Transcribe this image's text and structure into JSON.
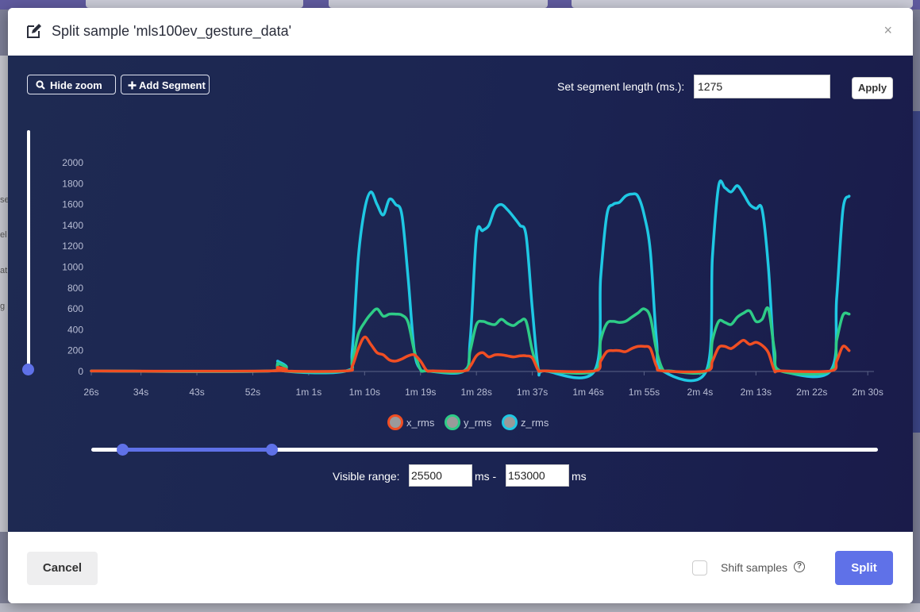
{
  "modal": {
    "title": "Split sample 'mls100ev_gesture_data'",
    "close_label": "×"
  },
  "toolbar": {
    "hide_zoom_label": "Hide zoom",
    "add_segment_label": "Add Segment",
    "segment_length_label": "Set segment length (ms.):",
    "segment_length_value": "1275",
    "apply_label": "Apply"
  },
  "visible_range": {
    "label": "Visible range:",
    "start_value": "25500",
    "separator": "ms -",
    "end_value": "153000",
    "unit": "ms",
    "slider_start_fraction": 0.04,
    "slider_end_fraction": 0.23
  },
  "footer": {
    "cancel_label": "Cancel",
    "shift_samples_label": "Shift samples",
    "split_label": "Split"
  },
  "background": {
    "side_fragments": [
      "se",
      "el",
      "at",
      "g"
    ]
  },
  "colors": {
    "accent": "#5f71e8",
    "x_rms": "#f04e23",
    "y_rms": "#2ecc87",
    "z_rms": "#1fc8e3"
  },
  "chart_data": {
    "type": "line",
    "title": "",
    "xlabel": "",
    "ylabel": "",
    "ylim": [
      0,
      2000
    ],
    "yticks": [
      0,
      200,
      400,
      600,
      800,
      1000,
      1200,
      1400,
      1600,
      1800,
      2000
    ],
    "xlim": [
      26,
      152
    ],
    "xticks": [
      {
        "t": 26,
        "label": "26s"
      },
      {
        "t": 34,
        "label": "34s"
      },
      {
        "t": 43,
        "label": "43s"
      },
      {
        "t": 52,
        "label": "52s"
      },
      {
        "t": 61,
        "label": "1m 1s"
      },
      {
        "t": 70,
        "label": "1m 10s"
      },
      {
        "t": 79,
        "label": "1m 19s"
      },
      {
        "t": 88,
        "label": "1m 28s"
      },
      {
        "t": 97,
        "label": "1m 37s"
      },
      {
        "t": 106,
        "label": "1m 46s"
      },
      {
        "t": 115,
        "label": "1m 55s"
      },
      {
        "t": 124,
        "label": "2m 4s"
      },
      {
        "t": 133,
        "label": "2m 13s"
      },
      {
        "t": 142,
        "label": "2m 22s"
      },
      {
        "t": 151,
        "label": "2m 30s"
      }
    ],
    "legend_position": "bottom-center",
    "series": [
      {
        "name": "x_rms",
        "points": [
          [
            26,
            5
          ],
          [
            55,
            5
          ],
          [
            56,
            40
          ],
          [
            57,
            5
          ],
          [
            67,
            5
          ],
          [
            68,
            50
          ],
          [
            69,
            220
          ],
          [
            70,
            330
          ],
          [
            71,
            260
          ],
          [
            72,
            180
          ],
          [
            73,
            160
          ],
          [
            74,
            110
          ],
          [
            75,
            100
          ],
          [
            76,
            120
          ],
          [
            77,
            150
          ],
          [
            78,
            160
          ],
          [
            79,
            100
          ],
          [
            80,
            10
          ],
          [
            81,
            5
          ],
          [
            86,
            5
          ],
          [
            87,
            50
          ],
          [
            88,
            150
          ],
          [
            89,
            180
          ],
          [
            90,
            140
          ],
          [
            91,
            160
          ],
          [
            92,
            160
          ],
          [
            93,
            150
          ],
          [
            94,
            140
          ],
          [
            95,
            150
          ],
          [
            96,
            150
          ],
          [
            97,
            130
          ],
          [
            98,
            10
          ],
          [
            99,
            5
          ],
          [
            107,
            5
          ],
          [
            108,
            100
          ],
          [
            109,
            190
          ],
          [
            110,
            200
          ],
          [
            111,
            200
          ],
          [
            112,
            190
          ],
          [
            113,
            220
          ],
          [
            114,
            240
          ],
          [
            115,
            240
          ],
          [
            116,
            220
          ],
          [
            117,
            50
          ],
          [
            118,
            5
          ],
          [
            125,
            5
          ],
          [
            126,
            100
          ],
          [
            127,
            230
          ],
          [
            128,
            240
          ],
          [
            129,
            220
          ],
          [
            130,
            260
          ],
          [
            131,
            300
          ],
          [
            132,
            260
          ],
          [
            133,
            280
          ],
          [
            134,
            250
          ],
          [
            135,
            180
          ],
          [
            136,
            10
          ],
          [
            137,
            5
          ],
          [
            145,
            5
          ],
          [
            146,
            100
          ],
          [
            147,
            240
          ],
          [
            148,
            200
          ]
        ]
      },
      {
        "name": "y_rms",
        "points": [
          [
            26,
            5
          ],
          [
            55,
            5
          ],
          [
            56,
            80
          ],
          [
            57,
            5
          ],
          [
            67,
            5
          ],
          [
            68,
            100
          ],
          [
            69,
            360
          ],
          [
            70,
            470
          ],
          [
            71,
            550
          ],
          [
            72,
            600
          ],
          [
            73,
            530
          ],
          [
            74,
            550
          ],
          [
            75,
            550
          ],
          [
            76,
            540
          ],
          [
            77,
            470
          ],
          [
            78,
            200
          ],
          [
            79,
            20
          ],
          [
            80,
            5
          ],
          [
            86,
            5
          ],
          [
            87,
            200
          ],
          [
            88,
            450
          ],
          [
            89,
            480
          ],
          [
            90,
            460
          ],
          [
            91,
            450
          ],
          [
            92,
            500
          ],
          [
            93,
            460
          ],
          [
            94,
            440
          ],
          [
            95,
            480
          ],
          [
            96,
            480
          ],
          [
            97,
            200
          ],
          [
            98,
            20
          ],
          [
            99,
            5
          ],
          [
            107,
            5
          ],
          [
            108,
            300
          ],
          [
            109,
            460
          ],
          [
            110,
            480
          ],
          [
            111,
            470
          ],
          [
            112,
            480
          ],
          [
            113,
            520
          ],
          [
            114,
            560
          ],
          [
            115,
            600
          ],
          [
            116,
            520
          ],
          [
            117,
            200
          ],
          [
            118,
            20
          ],
          [
            119,
            5
          ],
          [
            125,
            5
          ],
          [
            126,
            300
          ],
          [
            127,
            480
          ],
          [
            128,
            470
          ],
          [
            129,
            450
          ],
          [
            130,
            520
          ],
          [
            131,
            560
          ],
          [
            132,
            580
          ],
          [
            133,
            480
          ],
          [
            134,
            500
          ],
          [
            135,
            600
          ],
          [
            136,
            200
          ],
          [
            137,
            5
          ],
          [
            145,
            5
          ],
          [
            146,
            300
          ],
          [
            147,
            540
          ],
          [
            148,
            550
          ]
        ]
      },
      {
        "name": "z_rms",
        "points": [
          [
            26,
            5
          ],
          [
            55,
            5
          ],
          [
            56,
            100
          ],
          [
            57,
            5
          ],
          [
            67,
            5
          ],
          [
            68,
            200
          ],
          [
            69,
            1100
          ],
          [
            70,
            1550
          ],
          [
            71,
            1720
          ],
          [
            72,
            1600
          ],
          [
            73,
            1500
          ],
          [
            74,
            1650
          ],
          [
            75,
            1600
          ],
          [
            76,
            1500
          ],
          [
            77,
            900
          ],
          [
            78,
            200
          ],
          [
            79,
            20
          ],
          [
            80,
            5
          ],
          [
            86,
            5
          ],
          [
            87,
            300
          ],
          [
            88,
            1300
          ],
          [
            89,
            1350
          ],
          [
            90,
            1400
          ],
          [
            91,
            1560
          ],
          [
            92,
            1600
          ],
          [
            93,
            1550
          ],
          [
            94,
            1480
          ],
          [
            95,
            1400
          ],
          [
            96,
            1300
          ],
          [
            97,
            600
          ],
          [
            98,
            10
          ],
          [
            99,
            5
          ],
          [
            107,
            5
          ],
          [
            108,
            900
          ],
          [
            109,
            1500
          ],
          [
            110,
            1600
          ],
          [
            111,
            1620
          ],
          [
            112,
            1680
          ],
          [
            113,
            1700
          ],
          [
            114,
            1680
          ],
          [
            115,
            1500
          ],
          [
            116,
            1150
          ],
          [
            117,
            300
          ],
          [
            118,
            5
          ],
          [
            125,
            5
          ],
          [
            126,
            1100
          ],
          [
            127,
            1780
          ],
          [
            128,
            1760
          ],
          [
            129,
            1720
          ],
          [
            130,
            1780
          ],
          [
            131,
            1700
          ],
          [
            132,
            1600
          ],
          [
            133,
            1560
          ],
          [
            134,
            1550
          ],
          [
            135,
            1000
          ],
          [
            136,
            100
          ],
          [
            137,
            5
          ],
          [
            145,
            5
          ],
          [
            146,
            700
          ],
          [
            147,
            1550
          ],
          [
            148,
            1680
          ]
        ]
      }
    ]
  }
}
